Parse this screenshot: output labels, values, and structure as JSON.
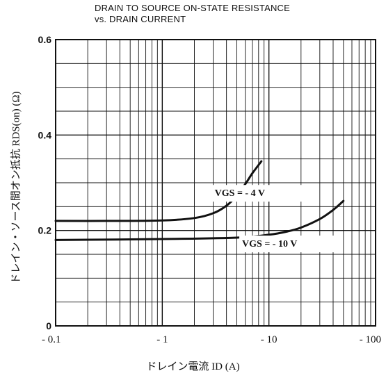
{
  "chart_data": {
    "type": "line",
    "title": "DRAIN TO SOURCE ON-STATE RESISTANCE",
    "subtitle": "vs. DRAIN CURRENT",
    "xlabel": "ドレイン電流 ID (A)",
    "ylabel": "ドレイン・ソース間オン抵抗 RDS(on) (Ω)",
    "x_scale": "log",
    "x_direction": "negative",
    "xlim": [
      -0.1,
      -100
    ],
    "ylim": [
      0,
      0.6
    ],
    "x_tick_labels": [
      "- 0.1",
      "- 1",
      "- 10",
      "- 100"
    ],
    "y_tick_labels": [
      "0",
      "0.2",
      "0.4",
      "0.6"
    ],
    "grid": true,
    "series": [
      {
        "name": "VGS = - 4 V",
        "x": [
          -0.1,
          -0.3,
          -1,
          -2,
          -3,
          -4,
          -5,
          -6,
          -7,
          -8.5
        ],
        "y": [
          0.22,
          0.22,
          0.221,
          0.226,
          0.236,
          0.252,
          0.273,
          0.297,
          0.32,
          0.345
        ]
      },
      {
        "name": "VGS = - 10 V",
        "x": [
          -0.1,
          -1,
          -5,
          -10,
          -15,
          -20,
          -30,
          -40,
          -50
        ],
        "y": [
          0.18,
          0.182,
          0.185,
          0.191,
          0.198,
          0.206,
          0.224,
          0.243,
          0.262
        ]
      }
    ]
  }
}
